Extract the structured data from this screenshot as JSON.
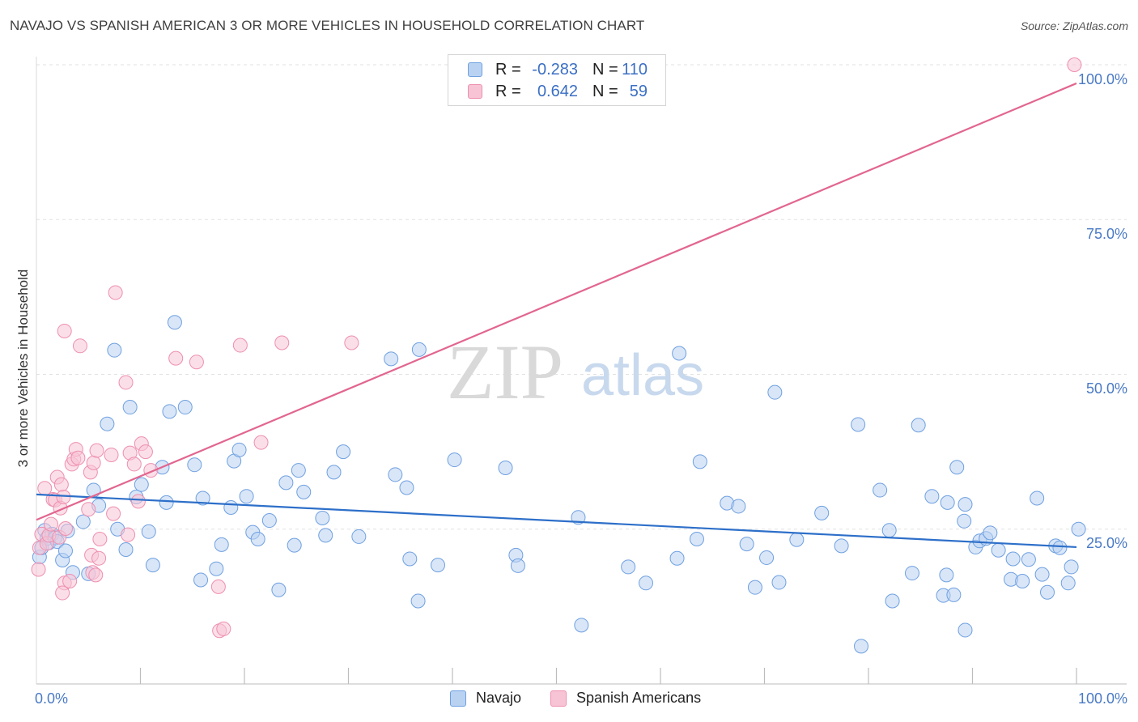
{
  "title": "NAVAJO VS SPANISH AMERICAN 3 OR MORE VEHICLES IN HOUSEHOLD CORRELATION CHART",
  "source": "Source: ZipAtlas.com",
  "watermark": {
    "zip": "ZIP",
    "atlas": "atlas"
  },
  "legend": {
    "r_label": "R =",
    "n_label": "N =",
    "rows": [
      {
        "name": "Navajo",
        "r": "-0.283",
        "n": "110",
        "color": "#6fa0e0"
      },
      {
        "name": "Spanish Americans",
        "r": "0.642",
        "n": "59",
        "color": "#ee8fb0"
      }
    ]
  },
  "colors": {
    "navajo_fill": "#b9d2f2",
    "navajo_stroke": "#6fa0e0",
    "navajo_line": "#2d6fc9",
    "spanish_fill": "#f7c4d5",
    "spanish_stroke": "#ee8fb0",
    "spanish_line": "#e2668f",
    "axis_text": "#4a7ac6"
  },
  "chart_data": {
    "type": "scatter",
    "title": "NAVAJO VS SPANISH AMERICAN 3 OR MORE VEHICLES IN HOUSEHOLD CORRELATION CHART",
    "xlabel": "",
    "ylabel": "3 or more Vehicles in Household",
    "xlim": [
      0,
      100
    ],
    "ylim": [
      0,
      102
    ],
    "x_tick_labels": [
      "0.0%",
      "100.0%"
    ],
    "y_tick_labels": [
      "25.0%",
      "50.0%",
      "75.0%",
      "100.0%"
    ],
    "y_ticks": [
      25,
      50,
      75,
      100
    ],
    "grid": true,
    "series": [
      {
        "name": "Navajo",
        "trend": {
          "x": [
            0,
            100
          ],
          "y": [
            30.6,
            22.1
          ]
        },
        "points": [
          [
            0.3,
            20.5
          ],
          [
            0.5,
            22.0
          ],
          [
            0.8,
            24.8
          ],
          [
            1.0,
            23.5
          ],
          [
            1.2,
            22.8
          ],
          [
            1.5,
            24.2
          ],
          [
            1.8,
            23.6
          ],
          [
            2.0,
            23.0
          ],
          [
            2.5,
            20.0
          ],
          [
            2.8,
            21.5
          ],
          [
            3.0,
            24.7
          ],
          [
            3.5,
            18.0
          ],
          [
            4.5,
            26.2
          ],
          [
            5.0,
            17.8
          ],
          [
            5.5,
            31.3
          ],
          [
            6.0,
            28.8
          ],
          [
            6.8,
            42.0
          ],
          [
            7.5,
            53.9
          ],
          [
            7.8,
            25.0
          ],
          [
            8.6,
            21.7
          ],
          [
            9.0,
            44.7
          ],
          [
            9.6,
            30.2
          ],
          [
            10.1,
            32.2
          ],
          [
            10.8,
            24.6
          ],
          [
            11.2,
            19.2
          ],
          [
            12.1,
            35.0
          ],
          [
            12.5,
            29.3
          ],
          [
            12.8,
            44.0
          ],
          [
            13.3,
            58.4
          ],
          [
            14.3,
            44.7
          ],
          [
            15.2,
            35.4
          ],
          [
            15.8,
            16.8
          ],
          [
            16.0,
            30.0
          ],
          [
            17.3,
            18.6
          ],
          [
            17.8,
            22.5
          ],
          [
            18.7,
            28.5
          ],
          [
            19.0,
            36.0
          ],
          [
            19.5,
            37.8
          ],
          [
            20.2,
            30.3
          ],
          [
            20.8,
            24.5
          ],
          [
            21.3,
            23.4
          ],
          [
            22.4,
            26.4
          ],
          [
            23.3,
            15.2
          ],
          [
            24.0,
            32.5
          ],
          [
            24.8,
            22.4
          ],
          [
            25.2,
            34.5
          ],
          [
            25.7,
            31.0
          ],
          [
            27.5,
            26.8
          ],
          [
            27.8,
            24.0
          ],
          [
            28.6,
            34.2
          ],
          [
            29.5,
            37.5
          ],
          [
            31.0,
            23.8
          ],
          [
            34.1,
            52.5
          ],
          [
            34.5,
            33.8
          ],
          [
            35.6,
            31.7
          ],
          [
            35.9,
            20.2
          ],
          [
            36.7,
            13.4
          ],
          [
            36.8,
            54.0
          ],
          [
            38.6,
            19.2
          ],
          [
            40.2,
            36.2
          ],
          [
            45.1,
            34.9
          ],
          [
            46.1,
            20.8
          ],
          [
            46.3,
            19.1
          ],
          [
            52.1,
            26.9
          ],
          [
            52.4,
            9.5
          ],
          [
            56.9,
            18.9
          ],
          [
            58.6,
            16.3
          ],
          [
            61.6,
            20.3
          ],
          [
            61.8,
            53.4
          ],
          [
            63.5,
            23.4
          ],
          [
            63.8,
            35.9
          ],
          [
            66.4,
            29.2
          ],
          [
            67.5,
            28.7
          ],
          [
            68.3,
            22.6
          ],
          [
            69.1,
            15.6
          ],
          [
            70.2,
            20.4
          ],
          [
            71.0,
            47.1
          ],
          [
            71.4,
            16.4
          ],
          [
            73.1,
            23.3
          ],
          [
            75.5,
            27.6
          ],
          [
            77.4,
            22.3
          ],
          [
            79.0,
            41.9
          ],
          [
            79.3,
            6.1
          ],
          [
            81.1,
            31.3
          ],
          [
            82.0,
            24.8
          ],
          [
            82.3,
            13.4
          ],
          [
            84.2,
            17.9
          ],
          [
            84.8,
            41.8
          ],
          [
            86.1,
            30.3
          ],
          [
            87.2,
            14.3
          ],
          [
            87.5,
            17.6
          ],
          [
            87.6,
            29.3
          ],
          [
            88.2,
            14.4
          ],
          [
            88.5,
            35.0
          ],
          [
            89.3,
            8.7
          ],
          [
            89.2,
            26.3
          ],
          [
            89.3,
            29.0
          ],
          [
            90.3,
            22.1
          ],
          [
            90.7,
            23.1
          ],
          [
            91.3,
            23.5
          ],
          [
            91.7,
            24.4
          ],
          [
            92.5,
            21.6
          ],
          [
            93.7,
            16.9
          ],
          [
            93.9,
            20.2
          ],
          [
            94.8,
            16.6
          ],
          [
            95.4,
            20.1
          ],
          [
            96.2,
            30.0
          ],
          [
            96.7,
            17.7
          ],
          [
            97.2,
            14.8
          ],
          [
            98.0,
            22.3
          ],
          [
            98.4,
            22.0
          ],
          [
            99.2,
            16.3
          ],
          [
            99.5,
            18.9
          ],
          [
            100.2,
            25.0
          ]
        ]
      },
      {
        "name": "Spanish Americans",
        "trend": {
          "x": [
            0,
            100
          ],
          "y": [
            26.5,
            97.0
          ]
        },
        "points": [
          [
            0.2,
            18.5
          ],
          [
            0.3,
            22.0
          ],
          [
            0.5,
            24.2
          ],
          [
            0.8,
            31.6
          ],
          [
            1.0,
            22.7
          ],
          [
            1.2,
            24.0
          ],
          [
            1.4,
            25.8
          ],
          [
            1.6,
            29.8
          ],
          [
            1.8,
            29.7
          ],
          [
            2.0,
            33.4
          ],
          [
            2.2,
            23.7
          ],
          [
            2.3,
            28.4
          ],
          [
            2.4,
            32.2
          ],
          [
            2.7,
            16.3
          ],
          [
            2.5,
            14.7
          ],
          [
            2.6,
            30.2
          ],
          [
            2.7,
            57.0
          ],
          [
            2.8,
            25.1
          ],
          [
            3.2,
            16.6
          ],
          [
            3.4,
            35.5
          ],
          [
            3.6,
            36.3
          ],
          [
            3.8,
            37.9
          ],
          [
            4.0,
            36.5
          ],
          [
            4.2,
            54.6
          ],
          [
            5.0,
            28.2
          ],
          [
            5.2,
            34.2
          ],
          [
            5.3,
            20.8
          ],
          [
            5.4,
            18.0
          ],
          [
            5.5,
            35.7
          ],
          [
            5.7,
            17.6
          ],
          [
            5.8,
            37.7
          ],
          [
            6.0,
            20.3
          ],
          [
            6.1,
            23.4
          ],
          [
            7.2,
            37.0
          ],
          [
            7.4,
            27.5
          ],
          [
            7.6,
            63.2
          ],
          [
            8.6,
            48.7
          ],
          [
            8.8,
            24.1
          ],
          [
            9.0,
            37.3
          ],
          [
            9.4,
            35.5
          ],
          [
            9.8,
            29.5
          ],
          [
            10.1,
            38.8
          ],
          [
            10.5,
            37.5
          ],
          [
            11.0,
            34.5
          ],
          [
            13.4,
            52.6
          ],
          [
            15.4,
            52.0
          ],
          [
            17.5,
            15.7
          ],
          [
            17.6,
            8.6
          ],
          [
            18.0,
            8.9
          ],
          [
            19.6,
            54.7
          ],
          [
            21.6,
            39.0
          ],
          [
            23.6,
            55.1
          ],
          [
            30.3,
            55.1
          ],
          [
            99.8,
            100.0
          ]
        ]
      }
    ]
  },
  "bottom_legend": [
    {
      "label": "Navajo"
    },
    {
      "label": "Spanish Americans"
    }
  ]
}
